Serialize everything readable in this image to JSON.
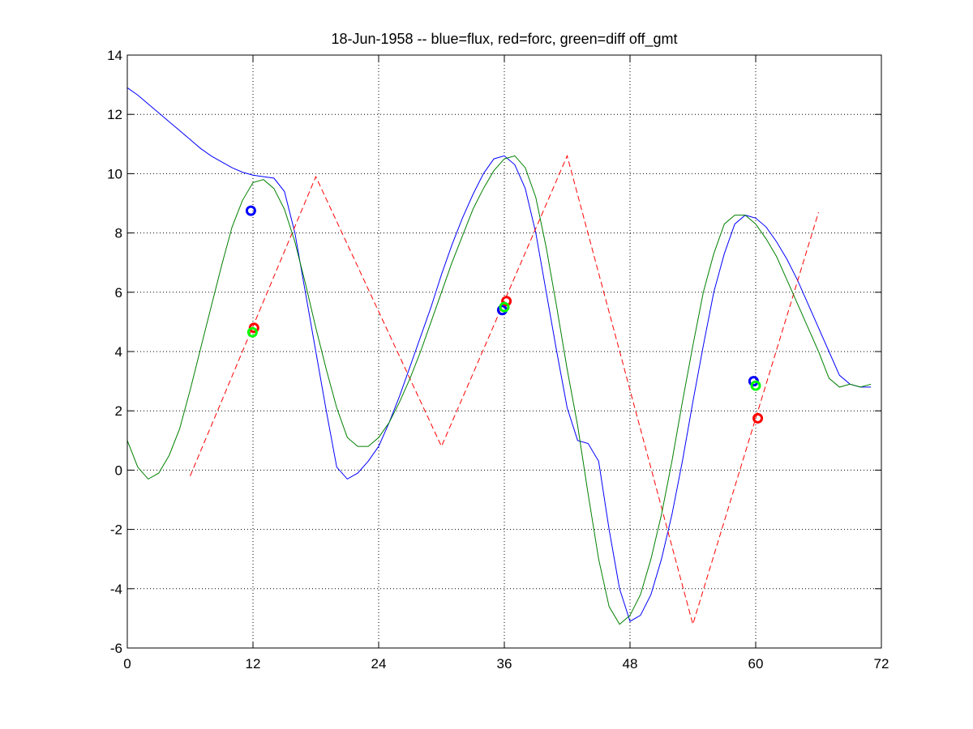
{
  "chart_data": {
    "type": "line",
    "title": "18-Jun-1958 -- blue=flux, red=forc, green=diff off_gmt",
    "xlabel": "",
    "ylabel": "",
    "xlim": [
      0,
      72
    ],
    "ylim": [
      -6,
      14
    ],
    "xticks": [
      0,
      12,
      24,
      36,
      48,
      60,
      72
    ],
    "yticks": [
      -6,
      -4,
      -2,
      0,
      2,
      4,
      6,
      8,
      10,
      12,
      14
    ],
    "grid": true,
    "series": [
      {
        "color": "#0000ff",
        "style": "solid",
        "x": [
          0,
          1,
          2,
          3,
          4,
          5,
          6,
          7,
          8,
          9,
          10,
          11,
          12,
          13,
          14,
          15,
          16,
          17,
          18,
          19,
          20,
          21,
          22,
          23,
          24,
          25,
          26,
          27,
          28,
          29,
          30,
          31,
          32,
          33,
          34,
          35,
          36,
          37,
          38,
          39,
          40,
          41,
          42,
          43,
          44,
          45,
          46,
          47,
          48,
          49,
          50,
          51,
          52,
          53,
          54,
          55,
          56,
          57,
          58,
          59,
          60,
          61,
          62,
          63,
          64,
          65,
          66,
          67,
          68,
          69,
          70,
          71
        ],
        "y": [
          12.9,
          12.65,
          12.35,
          12.05,
          11.75,
          11.45,
          11.15,
          10.85,
          10.6,
          10.4,
          10.2,
          10.05,
          9.95,
          9.9,
          9.85,
          9.4,
          8.0,
          6.0,
          4.0,
          2.0,
          0.1,
          -0.3,
          -0.1,
          0.3,
          0.8,
          1.6,
          2.5,
          3.5,
          4.5,
          5.5,
          6.6,
          7.6,
          8.5,
          9.3,
          10.0,
          10.5,
          10.6,
          10.3,
          9.5,
          8.0,
          6.0,
          4.0,
          2.1,
          1.0,
          0.9,
          0.3,
          -2.0,
          -4.0,
          -5.1,
          -4.9,
          -4.2,
          -3.0,
          -1.5,
          0.3,
          2.3,
          4.2,
          6.0,
          7.3,
          8.3,
          8.6,
          8.5,
          8.2,
          7.7,
          7.1,
          6.4,
          5.6,
          4.8,
          4.0,
          3.2,
          2.9,
          2.8,
          2.8
        ]
      },
      {
        "color": "#ff0000",
        "style": "dashed",
        "x": [
          6,
          18,
          30,
          42,
          54,
          66
        ],
        "y": [
          -0.2,
          9.9,
          0.8,
          10.6,
          -5.2,
          8.7
        ]
      },
      {
        "color": "#008000",
        "style": "solid",
        "x": [
          0,
          1,
          2,
          3,
          4,
          5,
          6,
          7,
          8,
          9,
          10,
          11,
          12,
          13,
          14,
          15,
          16,
          17,
          18,
          19,
          20,
          21,
          22,
          23,
          24,
          25,
          26,
          27,
          28,
          29,
          30,
          31,
          32,
          33,
          34,
          35,
          36,
          37,
          38,
          39,
          40,
          41,
          42,
          43,
          44,
          45,
          46,
          47,
          48,
          49,
          50,
          51,
          52,
          53,
          54,
          55,
          56,
          57,
          58,
          59,
          60,
          61,
          62,
          63,
          64,
          65,
          66,
          67,
          68,
          69,
          70,
          71
        ],
        "y": [
          1.0,
          0.1,
          -0.3,
          -0.1,
          0.5,
          1.4,
          2.7,
          4.1,
          5.5,
          6.9,
          8.2,
          9.1,
          9.7,
          9.8,
          9.5,
          8.8,
          7.7,
          6.3,
          4.8,
          3.4,
          2.1,
          1.1,
          0.8,
          0.8,
          1.1,
          1.6,
          2.3,
          3.1,
          4.0,
          5.0,
          6.0,
          7.0,
          7.9,
          8.8,
          9.5,
          10.1,
          10.5,
          10.6,
          10.2,
          9.2,
          7.5,
          5.5,
          3.4,
          1.5,
          -0.8,
          -3.0,
          -4.6,
          -5.2,
          -4.9,
          -4.2,
          -3.0,
          -1.5,
          0.3,
          2.3,
          4.2,
          6.0,
          7.3,
          8.3,
          8.6,
          8.6,
          8.3,
          7.8,
          7.2,
          6.4,
          5.6,
          4.8,
          4.0,
          3.1,
          2.8,
          2.9,
          2.8,
          2.9
        ],
        "note_shift": 0
      }
    ],
    "markers": [
      {
        "color": "#0000ff",
        "x": 11.8,
        "y": 8.75
      },
      {
        "color": "#ff0000",
        "x": 12.1,
        "y": 4.8
      },
      {
        "color": "#00ff00",
        "x": 11.95,
        "y": 4.65
      },
      {
        "color": "#0000ff",
        "x": 35.8,
        "y": 5.4
      },
      {
        "color": "#ff0000",
        "x": 36.2,
        "y": 5.7
      },
      {
        "color": "#00ff00",
        "x": 36.0,
        "y": 5.5
      },
      {
        "color": "#0000ff",
        "x": 59.8,
        "y": 3.0
      },
      {
        "color": "#ff0000",
        "x": 60.2,
        "y": 1.75
      },
      {
        "color": "#00ff00",
        "x": 60.0,
        "y": 2.85
      }
    ]
  }
}
